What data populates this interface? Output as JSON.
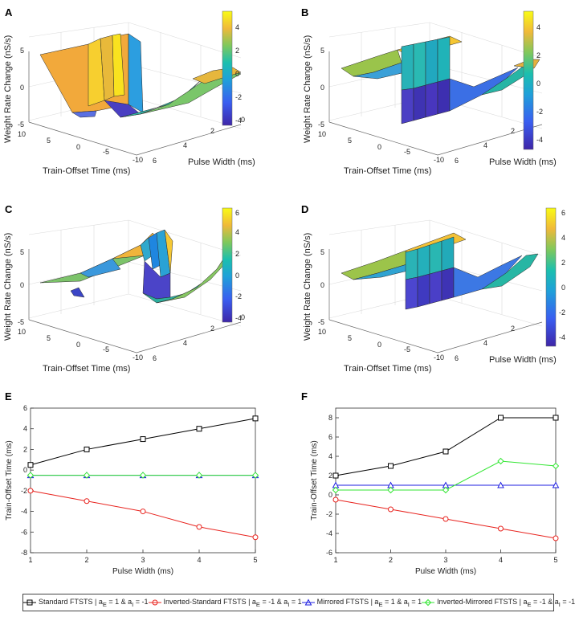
{
  "panels": {
    "A": {
      "label": "A",
      "colorbar_ticks": [
        "4",
        "2",
        "0",
        "-2",
        "-4"
      ]
    },
    "B": {
      "label": "B",
      "colorbar_ticks": [
        "4",
        "2",
        "0",
        "-2",
        "-4"
      ]
    },
    "C": {
      "label": "C",
      "colorbar_ticks": [
        "6",
        "4",
        "2",
        "0",
        "-2",
        "-4"
      ]
    },
    "D": {
      "label": "D",
      "colorbar_ticks": [
        "6",
        "4",
        "2",
        "0",
        "-2",
        "-4"
      ]
    },
    "E": {
      "label": "E"
    },
    "F": {
      "label": "F"
    }
  },
  "surface_axes": {
    "zlabel": "Weight Rate Change (nS/s)",
    "xlabel": "Train-Offset Time (ms)",
    "ylabel": "Pulse Width (ms)",
    "z_ticks": [
      "5",
      "0",
      "-5"
    ],
    "x_ticks": [
      "10",
      "5",
      "0",
      "-5",
      "-10"
    ],
    "y_ticks": [
      "6",
      "4",
      "2",
      "0"
    ]
  },
  "legend": {
    "standard": "Standard FTSTS | a",
    "standard_sub1": "E",
    "standard_mid": " = 1 & a",
    "standard_sub2": "I",
    "standard_end": " = -1",
    "inverted": "Inverted-Standard FTSTS | a",
    "inverted_sub1": "E",
    "inverted_mid": " = -1 & a",
    "inverted_sub2": "I",
    "inverted_end": " = 1",
    "mirrored": "Mirrored FTSTS | a",
    "mirrored_sub1": "E",
    "mirrored_mid": " = 1 & a",
    "mirrored_sub2": "I",
    "mirrored_end": " = 1",
    "invmirrored": "Inverted-Mirrored FTSTS | a",
    "invmirrored_sub1": "E",
    "invmirrored_mid": " = -1 & a",
    "invmirrored_sub2": "I",
    "invmirrored_end": " = -1"
  },
  "colors": {
    "standard": "#000000",
    "inverted": "#e8231e",
    "mirrored": "#1f1fe0",
    "invmirrored": "#33e633",
    "surf_high": "#f7e51f",
    "surf_mid": "#29b5b0",
    "surf_low": "#3b2f9e"
  },
  "chart_data": [
    {
      "type": "line",
      "panel": "E",
      "xlabel": "Pulse Width (ms)",
      "ylabel": "Train-Offset Time (ms)",
      "x": [
        1,
        2,
        3,
        4,
        5
      ],
      "xlim": [
        1,
        5
      ],
      "ylim": [
        -8,
        6
      ],
      "xticks": [
        1,
        2,
        3,
        4,
        5
      ],
      "yticks": [
        -8,
        -6,
        -4,
        -2,
        0,
        2,
        4,
        6
      ],
      "series": [
        {
          "name": "Standard FTSTS",
          "key": "standard",
          "marker": "square",
          "values": [
            0.5,
            2,
            3,
            4,
            5
          ]
        },
        {
          "name": "Inverted-Standard FTSTS",
          "key": "inverted",
          "marker": "circle",
          "values": [
            -2,
            -3,
            -4,
            -5.5,
            -6.5
          ]
        },
        {
          "name": "Mirrored FTSTS",
          "key": "mirrored",
          "marker": "triangle",
          "values": [
            -0.5,
            -0.5,
            -0.5,
            -0.5,
            -0.5
          ]
        },
        {
          "name": "Inverted-Mirrored FTSTS",
          "key": "invmirrored",
          "marker": "diamond",
          "values": [
            -0.5,
            -0.5,
            -0.5,
            -0.5,
            -0.5
          ]
        }
      ]
    },
    {
      "type": "line",
      "panel": "F",
      "xlabel": "Pulse Width (ms)",
      "ylabel": "Train-Offset Time (ms)",
      "x": [
        1,
        2,
        3,
        4,
        5
      ],
      "xlim": [
        1,
        5
      ],
      "ylim": [
        -6,
        9
      ],
      "xticks": [
        1,
        2,
        3,
        4,
        5
      ],
      "yticks": [
        -6,
        -4,
        -2,
        0,
        2,
        4,
        6,
        8
      ],
      "series": [
        {
          "name": "Standard FTSTS",
          "key": "standard",
          "marker": "square",
          "values": [
            2,
            3,
            4.5,
            8,
            8
          ]
        },
        {
          "name": "Inverted-Standard FTSTS",
          "key": "inverted",
          "marker": "circle",
          "values": [
            -0.5,
            -1.5,
            -2.5,
            -3.5,
            -4.5
          ]
        },
        {
          "name": "Mirrored FTSTS",
          "key": "mirrored",
          "marker": "triangle",
          "values": [
            1,
            1,
            1,
            1,
            1
          ]
        },
        {
          "name": "Inverted-Mirrored FTSTS",
          "key": "invmirrored",
          "marker": "diamond",
          "values": [
            0.5,
            0.5,
            0.5,
            3.5,
            3
          ]
        }
      ]
    }
  ]
}
